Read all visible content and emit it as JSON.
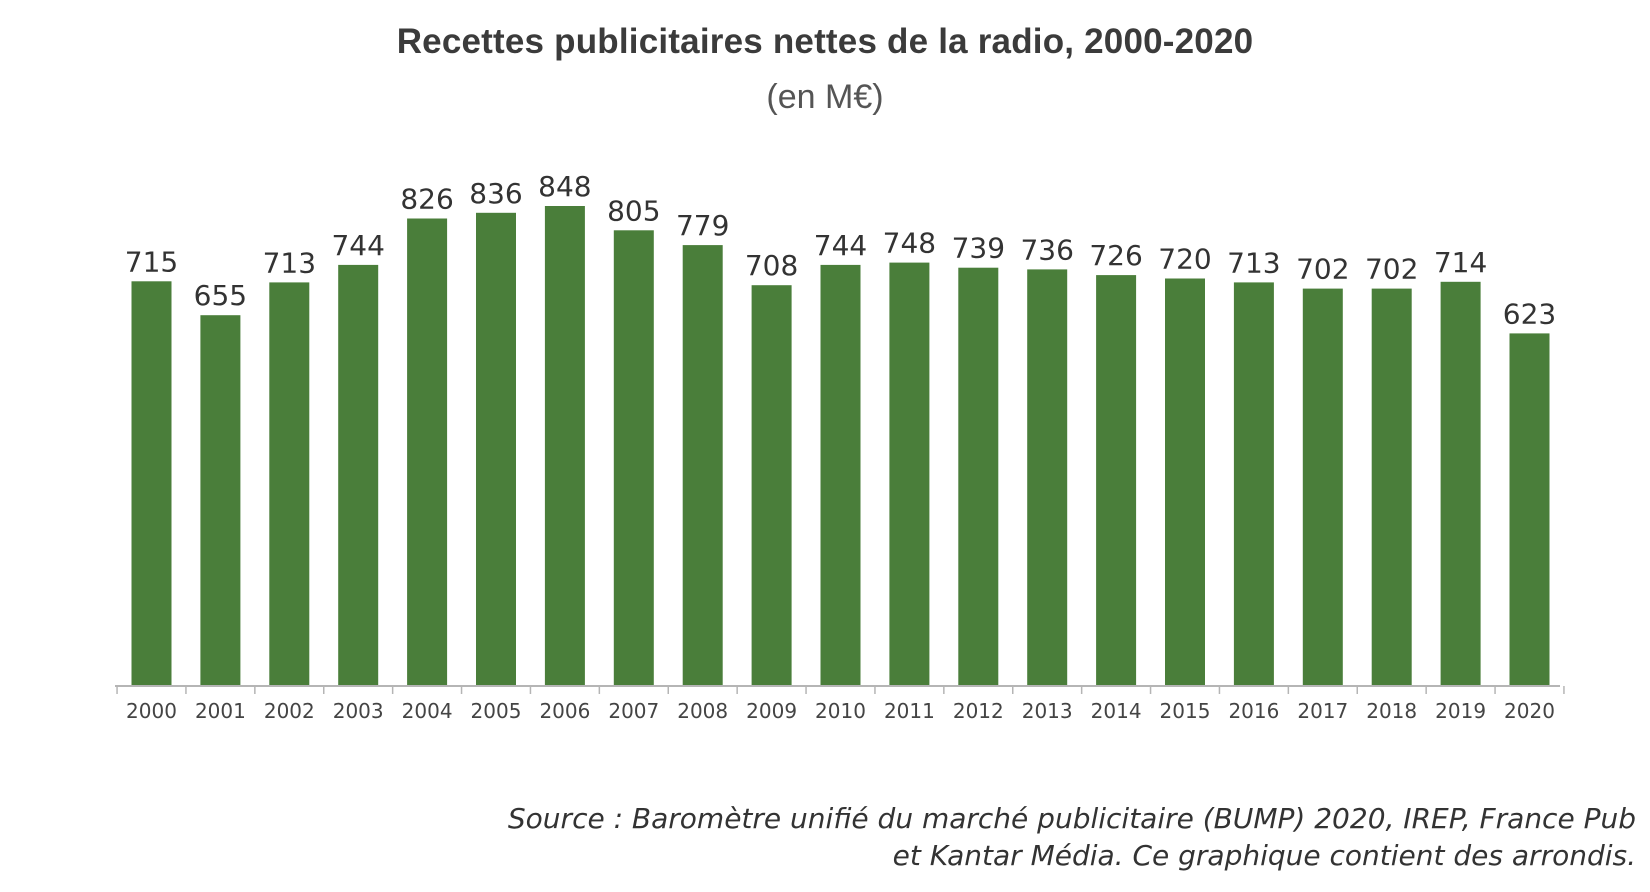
{
  "chart_data": {
    "type": "bar",
    "title": "Recettes publicitaires nettes de la radio, 2000-2020",
    "subtitle": "(en M€)",
    "categories": [
      "2000",
      "2001",
      "2002",
      "2003",
      "2004",
      "2005",
      "2006",
      "2007",
      "2008",
      "2009",
      "2010",
      "2011",
      "2012",
      "2013",
      "2014",
      "2015",
      "2016",
      "2017",
      "2018",
      "2019",
      "2020"
    ],
    "values": [
      715,
      655,
      713,
      744,
      826,
      836,
      848,
      805,
      779,
      708,
      744,
      748,
      739,
      736,
      726,
      720,
      713,
      702,
      702,
      714,
      623
    ],
    "xlabel": "",
    "ylabel": "",
    "ylim": [
      0,
      848
    ],
    "grid": false,
    "bar_color": "#4a7e3a",
    "data_labels": true
  },
  "source": {
    "line1": "Source : Baromètre unifié du marché publicitaire (BUMP) 2020, IREP, France Pub",
    "line2": "et Kantar Média. Ce graphique contient des arrondis."
  }
}
